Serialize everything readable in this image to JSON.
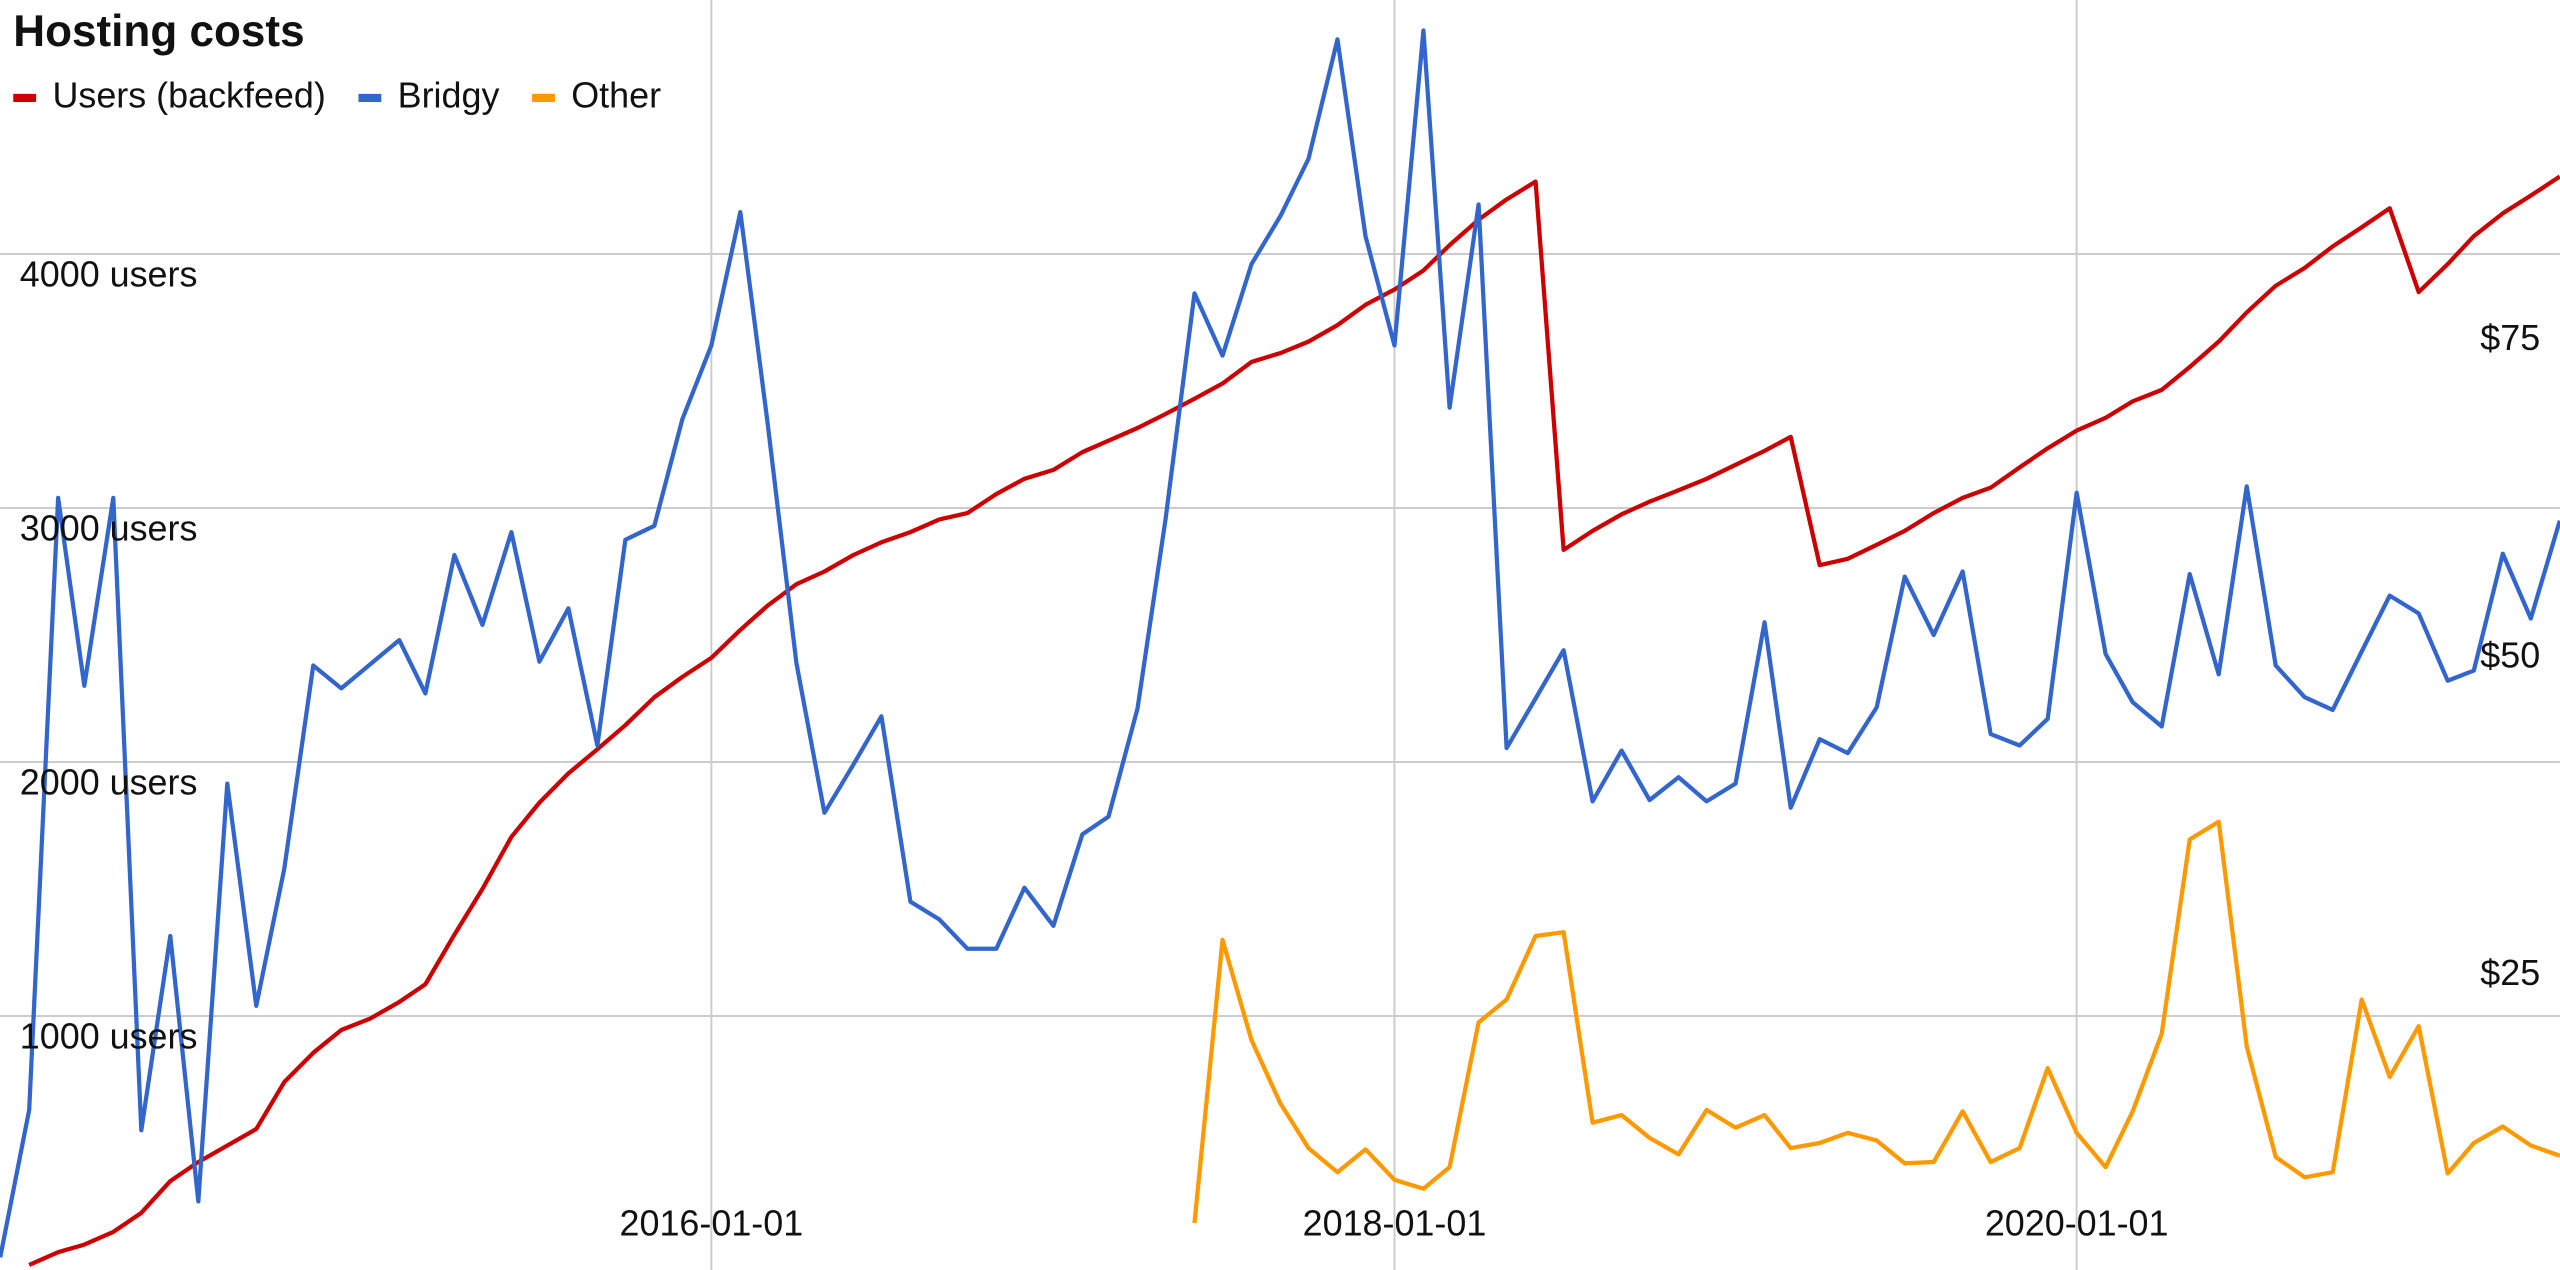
{
  "chart_data": {
    "type": "line",
    "title": "Hosting costs",
    "x": [
      "2013-12-01",
      "2014-01-01",
      "2014-02-01",
      "2014-03-01",
      "2014-04-01",
      "2014-05-01",
      "2014-06-01",
      "2014-07-01",
      "2014-08-01",
      "2014-09-01",
      "2014-10-01",
      "2014-11-01",
      "2014-12-01",
      "2015-01-01",
      "2015-02-01",
      "2015-03-01",
      "2015-04-01",
      "2015-05-01",
      "2015-06-01",
      "2015-07-01",
      "2015-08-01",
      "2015-09-01",
      "2015-10-01",
      "2015-11-01",
      "2015-12-01",
      "2016-01-01",
      "2016-02-01",
      "2016-03-01",
      "2016-04-01",
      "2016-05-01",
      "2016-06-01",
      "2016-07-01",
      "2016-08-01",
      "2016-09-01",
      "2016-10-01",
      "2016-11-01",
      "2016-12-01",
      "2017-01-01",
      "2017-02-01",
      "2017-03-01",
      "2017-04-01",
      "2017-05-01",
      "2017-06-01",
      "2017-07-01",
      "2017-08-01",
      "2017-09-01",
      "2017-10-01",
      "2017-11-01",
      "2017-12-01",
      "2018-01-01",
      "2018-02-01",
      "2018-03-01",
      "2018-04-01",
      "2018-05-01",
      "2018-06-01",
      "2018-07-01",
      "2018-08-01",
      "2018-09-01",
      "2018-10-01",
      "2018-11-01",
      "2018-12-01",
      "2019-01-01",
      "2019-02-01",
      "2019-03-01",
      "2019-04-01",
      "2019-05-01",
      "2019-06-01",
      "2019-07-01",
      "2019-08-01",
      "2019-09-01",
      "2019-10-01",
      "2019-11-01",
      "2019-12-01",
      "2020-01-01",
      "2020-02-01",
      "2020-03-01",
      "2020-04-01",
      "2020-05-01",
      "2020-06-01",
      "2020-07-01",
      "2020-08-01",
      "2020-09-01",
      "2020-10-01",
      "2020-11-01",
      "2020-12-01",
      "2021-01-01",
      "2021-02-01",
      "2021-03-01",
      "2021-04-01",
      "2021-05-01",
      "2021-06-01"
    ],
    "xlim": [
      "2013-12-01",
      "2021-06-01"
    ],
    "xticks": [
      "2016-01-01",
      "2018-01-01",
      "2020-01-01"
    ],
    "ylim": [
      0,
      5000
    ],
    "yticks": [
      {
        "value": 1000,
        "label": "1000 users"
      },
      {
        "value": 2000,
        "label": "2000 users"
      },
      {
        "value": 3000,
        "label": "3000 users"
      },
      {
        "value": 4000,
        "label": "4000 users"
      }
    ],
    "y2lim": [
      0,
      100
    ],
    "y2ticks": [
      {
        "value": 25,
        "label": "$25"
      },
      {
        "value": 50,
        "label": "$50"
      },
      {
        "value": 75,
        "label": "$75"
      }
    ],
    "grid": true,
    "legend": "top-left",
    "series": [
      {
        "name": "Users (backfeed)",
        "color": "#cc0000",
        "values": [
          null,
          20,
          70,
          100,
          150,
          225,
          350,
          425,
          490,
          555,
          740,
          855,
          945,
          990,
          1055,
          1125,
          1320,
          1500,
          1705,
          1840,
          1955,
          2050,
          2145,
          2255,
          2335,
          2410,
          2520,
          2615,
          2700,
          2750,
          2815,
          2865,
          2905,
          2955,
          2980,
          3055,
          3115,
          3150,
          3220,
          3265,
          3315,
          3370,
          3430,
          3490,
          3575,
          3610,
          3655,
          3720,
          3800,
          3860,
          3935,
          4035,
          4135,
          4215,
          4285,
          2835,
          2910,
          2975,
          3025,
          3070,
          3115,
          3170,
          3225,
          3280,
          2775,
          2800,
          2855,
          2910,
          2980,
          3040,
          3080,
          3160,
          3235,
          3305,
          3355,
          3420,
          3465,
          3555,
          3655,
          3770,
          3875,
          3945,
          4030,
          4105,
          4180,
          3850,
          3960,
          4070,
          4160,
          4230,
          4305
        ]
      },
      {
        "name": "Bridgy",
        "color": "#3366cc",
        "axis": "y2",
        "values": [
          1,
          12.6,
          60.8,
          46,
          60.8,
          11,
          26.3,
          5.4,
          38.3,
          20.8,
          31.6,
          47.6,
          45.8,
          47.7,
          49.6,
          45.4,
          56.3,
          50.8,
          58.1,
          47.9,
          52.1,
          41.3,
          57.5,
          58.6,
          67,
          72.8,
          83.3,
          66.8,
          47.8,
          36,
          39.8,
          43.6,
          29,
          27.6,
          25.3,
          25.3,
          30.1,
          27.1,
          34.3,
          35.7,
          44.2,
          59.1,
          76.9,
          72,
          79.2,
          83,
          87.5,
          96.9,
          81.4,
          72.8,
          97.6,
          67.9,
          83.9,
          41.1,
          45,
          48.8,
          36.9,
          40.9,
          37,
          38.8,
          36.9,
          38.3,
          51,
          36.4,
          41.8,
          40.7,
          44.3,
          54.6,
          50,
          55,
          42.2,
          41.3,
          43.4,
          61.2,
          48.5,
          44.7,
          42.8,
          54.8,
          46.9,
          61.7,
          47.6,
          45.1,
          44.1,
          48.7,
          53.1,
          51.7,
          46.4,
          47.2,
          56.4,
          51.3,
          59
        ]
      },
      {
        "name": "Other",
        "color": "#ff9900",
        "axis": "y2",
        "values": [
          null,
          null,
          null,
          null,
          null,
          null,
          null,
          null,
          null,
          null,
          null,
          null,
          null,
          null,
          null,
          null,
          null,
          null,
          null,
          null,
          null,
          null,
          null,
          null,
          null,
          null,
          null,
          null,
          null,
          null,
          null,
          null,
          null,
          null,
          null,
          null,
          null,
          null,
          null,
          null,
          null,
          null,
          3.7,
          26,
          18.1,
          13.1,
          9.6,
          7.7,
          9.5,
          7.1,
          6.4,
          8.1,
          19.5,
          21.3,
          26.3,
          26.6,
          11.6,
          12.2,
          10.4,
          9.1,
          12.6,
          11.2,
          12.2,
          9.6,
          10,
          10.8,
          10.2,
          8.4,
          8.5,
          12.5,
          8.5,
          9.6,
          15.9,
          10.8,
          8.1,
          12.5,
          18.6,
          33.9,
          35.3,
          17.6,
          8.9,
          7.3,
          7.7,
          21.3,
          15.2,
          19.2,
          7.6,
          10,
          11.3,
          9.8,
          9
        ]
      }
    ]
  }
}
